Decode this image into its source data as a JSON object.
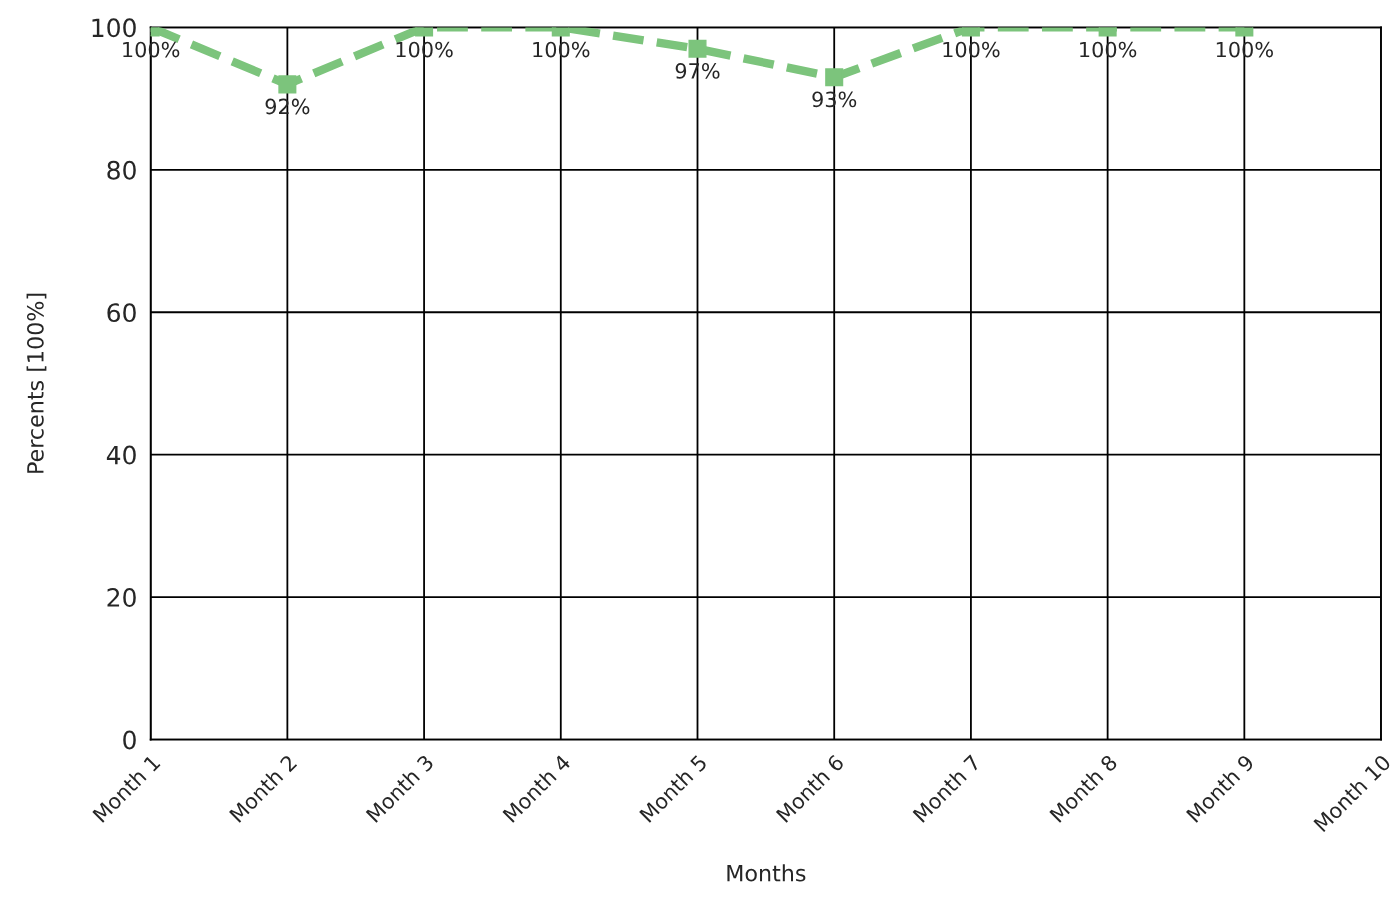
{
  "chart_data": {
    "type": "line",
    "xlabel": "Months",
    "ylabel": "Percents [100%]",
    "categories": [
      "Month 1",
      "Month 2",
      "Month 3",
      "Month 4",
      "Month 5",
      "Month 6",
      "Month 7",
      "Month 8",
      "Month 9",
      "Month 10"
    ],
    "series": [
      {
        "color": "#7cc47c",
        "values": [
          100,
          92,
          100,
          100,
          97,
          93,
          100,
          100,
          100,
          null
        ],
        "value_labels": [
          "100%",
          "92%",
          "100%",
          "100%",
          "97%",
          "93%",
          "100%",
          "100%",
          "100%",
          null
        ]
      }
    ],
    "ylim": [
      0,
      100
    ],
    "yticks": [
      0,
      20,
      40,
      60,
      80,
      100
    ],
    "grid": true,
    "marker": "square",
    "line_style": "dashed"
  }
}
